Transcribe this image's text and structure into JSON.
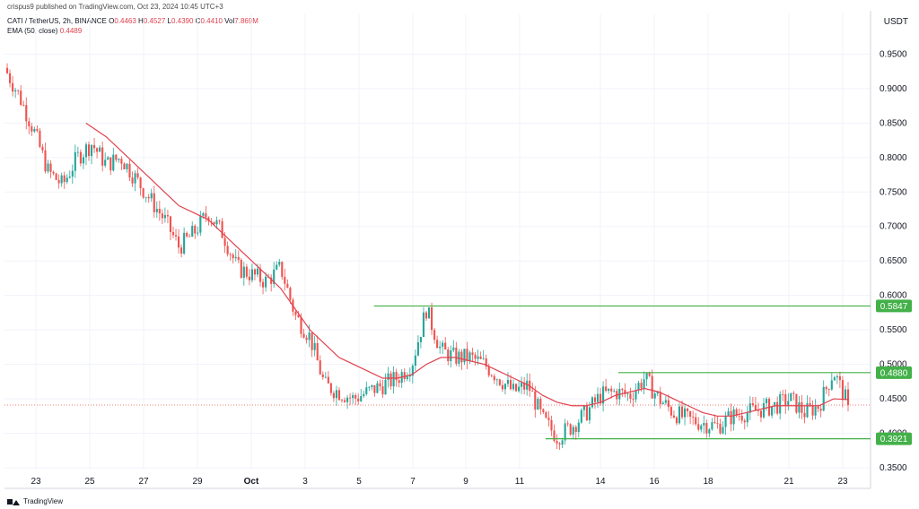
{
  "header": {
    "published_by": "crispus9 published on TradingView.com, Oct 23, 2024 10:45 UTC+3",
    "symbol": "CATI / TetherUS, 2h, BINANCE",
    "ohlc": {
      "open_label": "O",
      "open": "0.4463",
      "high_label": "H",
      "high": "0.4527",
      "low_label": "L",
      "low": "0.4390",
      "close_label": "C",
      "close": "0.4410",
      "vol_label": "Vol",
      "vol": "7.869M"
    },
    "ema_label": "EMA (50, close)",
    "ema_value": "0.4489"
  },
  "unit": "USDT",
  "footer": {
    "brand": "TradingView"
  },
  "chart_data": {
    "type": "candlestick",
    "colors": {
      "up": "#26a69a",
      "down": "#ef5350",
      "ema": "#e0424f",
      "levels": "#43b049",
      "grid": "#f0f3fa",
      "last_price": "#ef5350"
    },
    "ylim": [
      0.35,
      0.97
    ],
    "y_ticks": [
      "0.3500",
      "0.4000",
      "0.4500",
      "0.5000",
      "0.5500",
      "0.6000",
      "0.6500",
      "0.7000",
      "0.7500",
      "0.8000",
      "0.8500",
      "0.9000",
      "0.9500"
    ],
    "x_ticks": [
      "23",
      "25",
      "27",
      "29",
      "Oct",
      "3",
      "5",
      "7",
      "9",
      "11",
      "14",
      "16",
      "18",
      "21",
      "23"
    ],
    "price_path": [
      [
        0,
        0.93
      ],
      [
        0.5,
        0.89
      ],
      [
        1,
        0.84
      ],
      [
        1.5,
        0.78
      ],
      [
        2,
        0.76
      ],
      [
        2.5,
        0.8
      ],
      [
        3,
        0.82
      ],
      [
        3.5,
        0.79
      ],
      [
        4,
        0.8
      ],
      [
        4.5,
        0.77
      ],
      [
        5,
        0.74
      ],
      [
        5.5,
        0.71
      ],
      [
        6,
        0.67
      ],
      [
        6.5,
        0.69
      ],
      [
        7,
        0.72
      ],
      [
        7.5,
        0.69
      ],
      [
        8,
        0.64
      ],
      [
        8.5,
        0.63
      ],
      [
        9,
        0.62
      ],
      [
        9.5,
        0.64
      ],
      [
        10,
        0.57
      ],
      [
        10.5,
        0.54
      ],
      [
        11,
        0.47
      ],
      [
        11.5,
        0.46
      ],
      [
        12,
        0.45
      ],
      [
        12.5,
        0.46
      ],
      [
        13,
        0.47
      ],
      [
        13.5,
        0.48
      ],
      [
        14,
        0.5
      ],
      [
        14.5,
        0.58
      ],
      [
        15,
        0.52
      ],
      [
        15.5,
        0.51
      ],
      [
        16,
        0.51
      ],
      [
        16.5,
        0.5
      ],
      [
        17,
        0.48
      ],
      [
        17.5,
        0.46
      ],
      [
        18,
        0.47
      ],
      [
        18.5,
        0.42
      ],
      [
        19,
        0.395
      ],
      [
        19.5,
        0.41
      ],
      [
        20,
        0.43
      ],
      [
        20.5,
        0.455
      ],
      [
        21,
        0.46
      ],
      [
        21.5,
        0.455
      ],
      [
        22,
        0.48
      ],
      [
        22.5,
        0.45
      ],
      [
        23,
        0.43
      ],
      [
        23.5,
        0.42
      ],
      [
        24,
        0.415
      ],
      [
        24.5,
        0.41
      ],
      [
        25,
        0.425
      ],
      [
        25.5,
        0.43
      ],
      [
        26,
        0.435
      ],
      [
        26.5,
        0.44
      ],
      [
        27,
        0.45
      ],
      [
        27.5,
        0.43
      ],
      [
        28,
        0.44
      ],
      [
        28.5,
        0.49
      ],
      [
        29,
        0.441
      ]
    ],
    "ema": [
      [
        2.8,
        0.85
      ],
      [
        3.5,
        0.83
      ],
      [
        4,
        0.81
      ],
      [
        4.5,
        0.79
      ],
      [
        5,
        0.77
      ],
      [
        5.5,
        0.75
      ],
      [
        6,
        0.73
      ],
      [
        6.5,
        0.72
      ],
      [
        7,
        0.71
      ],
      [
        7.5,
        0.69
      ],
      [
        8,
        0.67
      ],
      [
        8.5,
        0.65
      ],
      [
        9,
        0.63
      ],
      [
        9.5,
        0.61
      ],
      [
        10,
        0.58
      ],
      [
        10.5,
        0.55
      ],
      [
        11,
        0.53
      ],
      [
        11.5,
        0.51
      ],
      [
        12,
        0.5
      ],
      [
        12.5,
        0.49
      ],
      [
        13,
        0.48
      ],
      [
        13.5,
        0.48
      ],
      [
        14,
        0.485
      ],
      [
        14.5,
        0.5
      ],
      [
        15,
        0.51
      ],
      [
        15.5,
        0.51
      ],
      [
        16,
        0.505
      ],
      [
        16.5,
        0.5
      ],
      [
        17,
        0.49
      ],
      [
        17.5,
        0.48
      ],
      [
        18,
        0.47
      ],
      [
        18.5,
        0.455
      ],
      [
        19,
        0.445
      ],
      [
        19.5,
        0.44
      ],
      [
        20,
        0.44
      ],
      [
        20.5,
        0.445
      ],
      [
        21,
        0.455
      ],
      [
        21.5,
        0.46
      ],
      [
        22,
        0.465
      ],
      [
        22.5,
        0.46
      ],
      [
        23,
        0.45
      ],
      [
        23.5,
        0.44
      ],
      [
        24,
        0.43
      ],
      [
        24.5,
        0.425
      ],
      [
        25,
        0.425
      ],
      [
        25.5,
        0.43
      ],
      [
        26,
        0.435
      ],
      [
        26.5,
        0.44
      ],
      [
        27,
        0.44
      ],
      [
        27.5,
        0.44
      ],
      [
        28,
        0.44
      ],
      [
        28.5,
        0.45
      ],
      [
        29,
        0.449
      ]
    ],
    "levels": [
      {
        "value": 0.5847,
        "label": "0.5847",
        "x_start": 12.7
      },
      {
        "value": 0.488,
        "label": "0.4880",
        "x_start": 21.1
      },
      {
        "value": 0.3921,
        "label": "0.3921",
        "x_start": 18.6
      }
    ],
    "last_price": 0.441
  }
}
